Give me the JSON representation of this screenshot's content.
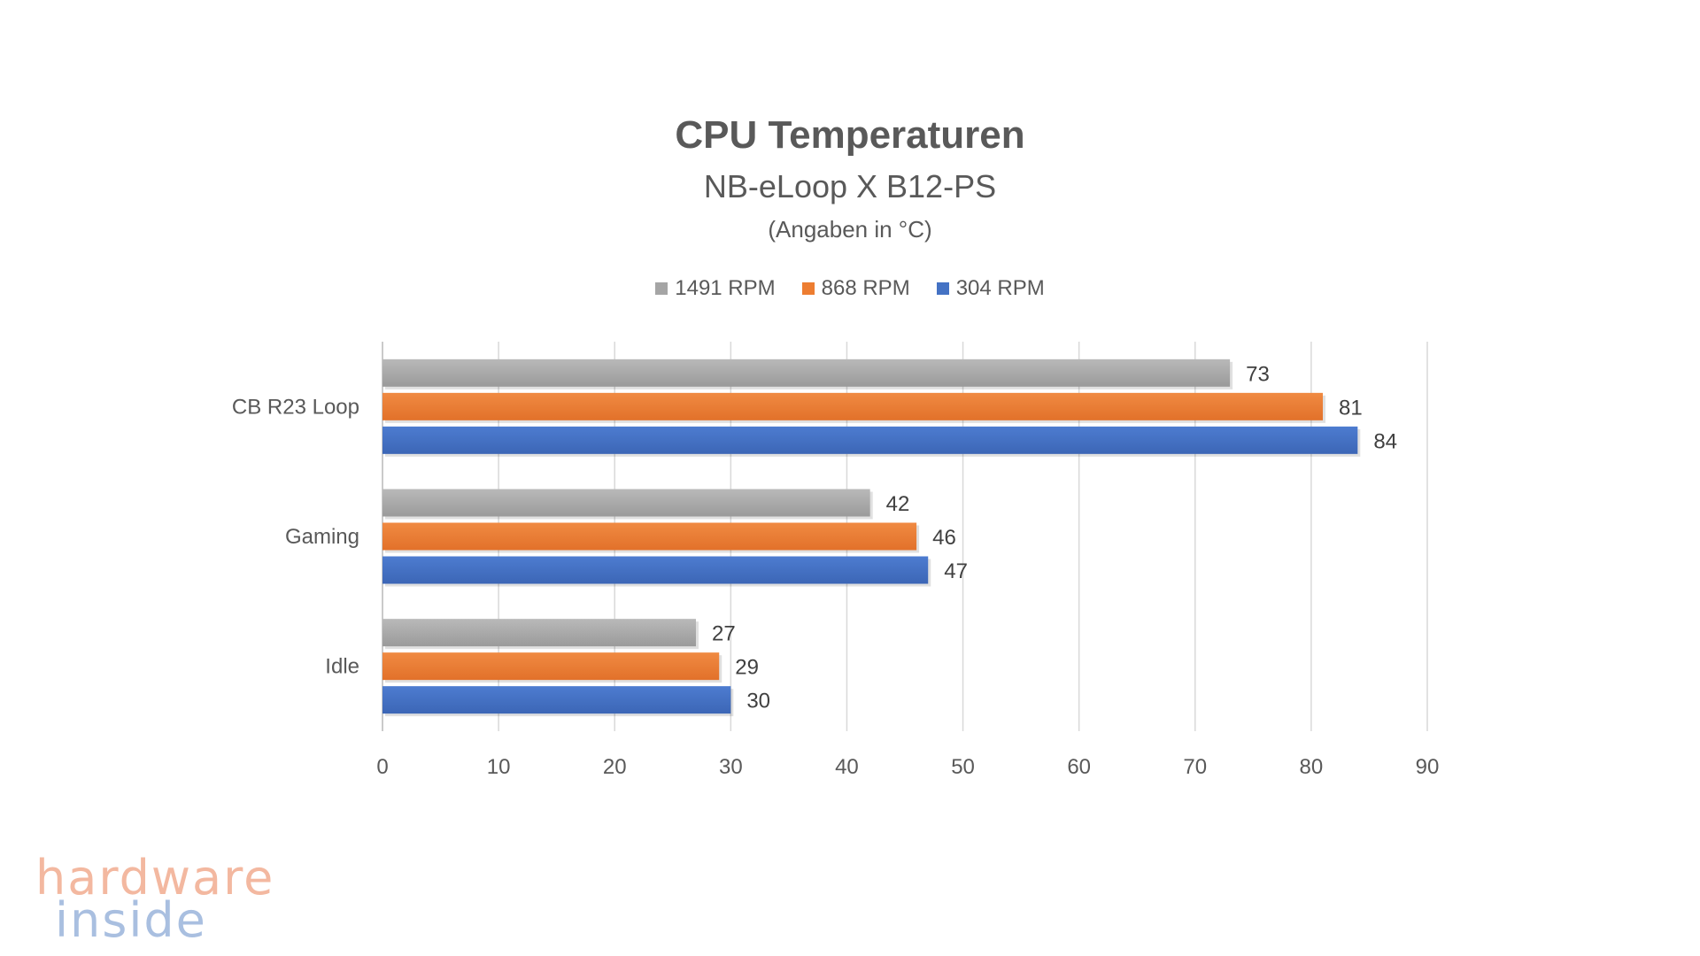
{
  "chart_data": {
    "type": "bar",
    "orientation": "horizontal",
    "title": "CPU Temperaturen",
    "subtitle": "NB-eLoop X B12-PS",
    "unit_note": "(Angaben in °C)",
    "categories": [
      "CB R23 Loop",
      "Gaming",
      "Idle"
    ],
    "series": [
      {
        "name": "1491 RPM",
        "values": [
          73,
          42,
          27
        ],
        "color": "#a5a5a5"
      },
      {
        "name": "868 RPM",
        "values": [
          81,
          46,
          29
        ],
        "color": "#ed7d31"
      },
      {
        "name": "304 RPM",
        "values": [
          84,
          47,
          30
        ],
        "color": "#4472c4"
      }
    ],
    "xlim": [
      0,
      90
    ],
    "xticks": [
      0,
      10,
      20,
      30,
      40,
      50,
      60,
      70,
      80,
      90
    ],
    "grid": "vertical",
    "legend": "top-center",
    "data_labels": true
  },
  "watermark": {
    "line1": "hardware",
    "line2": "inside"
  }
}
